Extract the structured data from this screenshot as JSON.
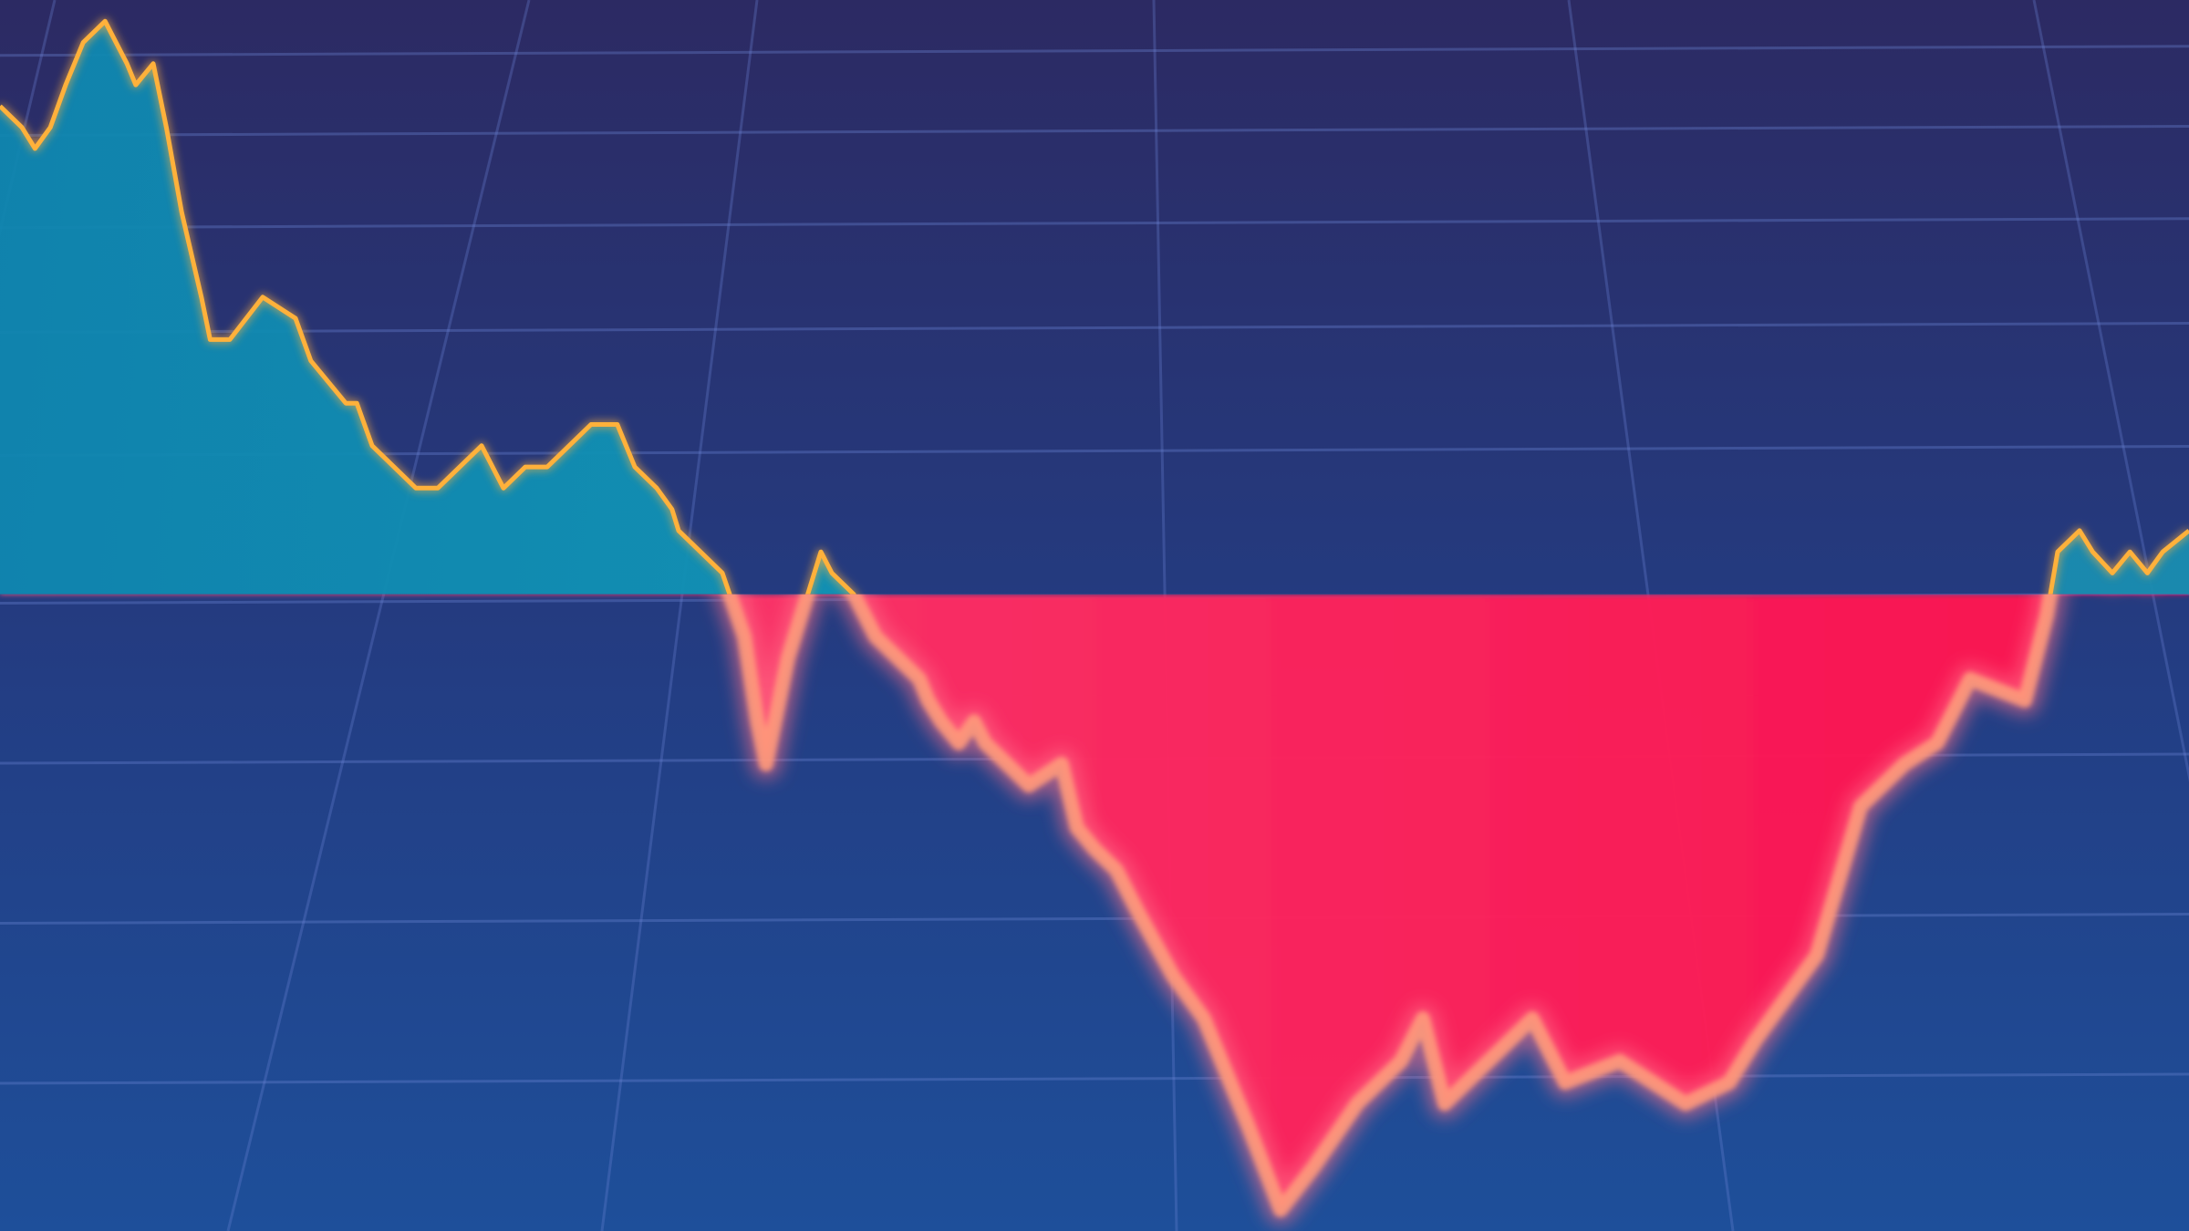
{
  "colors": {
    "background_top": "#2c2a63",
    "background_bottom": "#1e4f9a",
    "grid": "#6d86d8",
    "baseline": "#d9e6ff",
    "area_above": "#1590b3",
    "area_below": "#ff1f5a",
    "line_above": "#ffb13a",
    "line_below": "#ff9a7a"
  },
  "chart_data": {
    "type": "area",
    "title": "",
    "xlabel": "",
    "ylabel": "",
    "baseline": 0,
    "xlim": [
      0,
      100
    ],
    "ylim": [
      -30,
      28
    ],
    "grid": true,
    "legend": "none",
    "x": [
      0,
      1,
      1.6,
      2.3,
      3,
      3.8,
      4.8,
      5.8,
      6.2,
      7,
      7.6,
      8.3,
      9.2,
      9.6,
      10.5,
      12,
      13.5,
      14.2,
      15.8,
      16.3,
      17,
      18,
      19,
      20,
      21,
      22,
      23,
      24,
      25,
      26,
      27,
      28.2,
      29,
      30,
      30.7,
      31,
      32,
      33,
      34,
      34.6,
      35,
      36,
      37.5,
      38,
      39,
      40,
      42,
      42.4,
      43,
      43.8,
      44.5,
      45,
      46,
      47,
      48.5,
      49.2,
      50,
      51,
      52,
      53.6,
      55,
      57,
      58.5,
      60,
      62,
      64,
      65,
      66,
      68,
      70,
      71.5,
      74,
      77,
      79,
      80.2,
      83,
      85,
      87,
      88.5,
      90,
      92.5,
      93.5,
      94,
      95,
      95.6,
      96.5,
      97.3,
      98.1,
      98.8,
      100
    ],
    "y": [
      23,
      22,
      21,
      22,
      24,
      26,
      27,
      25,
      24,
      25,
      22,
      18,
      14,
      12,
      12,
      14,
      13,
      11,
      9,
      9,
      7,
      6,
      5,
      5,
      6,
      7,
      5,
      6,
      6,
      7,
      8,
      8,
      6,
      5,
      4,
      3,
      2,
      1,
      -2,
      -6,
      -8,
      -3,
      2,
      1,
      0,
      -2,
      -4,
      -5,
      -6,
      -7,
      -6,
      -7,
      -8,
      -9,
      -8,
      -11,
      -12,
      -13,
      -15,
      -18,
      -20,
      -25,
      -29,
      -27,
      -24,
      -22,
      -20,
      -24,
      -22,
      -20,
      -23,
      -22,
      -24,
      -23,
      -21,
      -17,
      -10,
      -8,
      -7,
      -4,
      -5,
      -1,
      2,
      3,
      2,
      1,
      2,
      1,
      2,
      3
    ]
  }
}
